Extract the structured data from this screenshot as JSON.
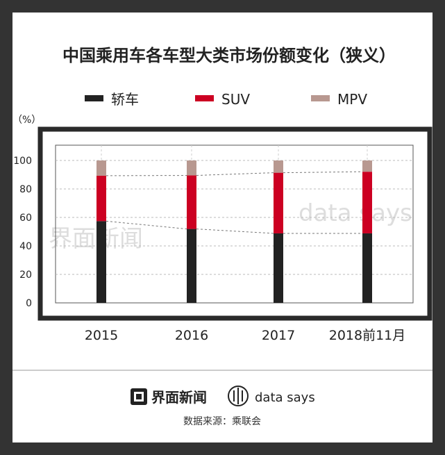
{
  "chart_data": {
    "type": "bar",
    "stacked": true,
    "title": "中国乘用车各车型大类市场份额变化（狭义）",
    "unit_label": "（%）",
    "categories": [
      "2015",
      "2016",
      "2017",
      "2018前11月"
    ],
    "series": [
      {
        "name": "轿车",
        "color": "#222222",
        "values": [
          57.4,
          51.9,
          48.8,
          48.8
        ]
      },
      {
        "name": "SUV",
        "color": "#cc0022",
        "values": [
          31.9,
          37.6,
          42.6,
          43.3
        ]
      },
      {
        "name": "MPV",
        "color": "#b89890",
        "values": [
          10.7,
          10.5,
          8.6,
          7.9
        ]
      }
    ],
    "yticks": [
      0,
      20,
      40,
      60,
      80,
      100
    ],
    "ylim": [
      0,
      110
    ],
    "grid": true
  },
  "watermarks": {
    "left": "界面新闻",
    "right": "data says"
  },
  "footer": {
    "brand1": "界面新闻",
    "brand2": "data says",
    "source": "数据来源：乘联会"
  }
}
